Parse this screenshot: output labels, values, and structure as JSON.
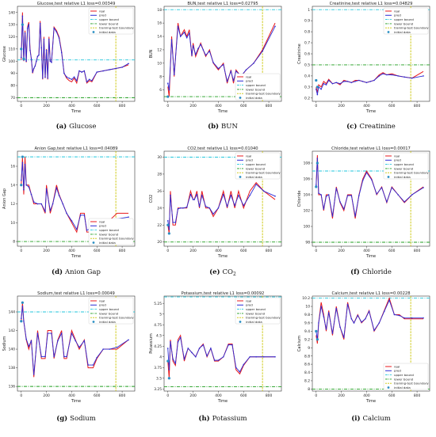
{
  "figure": {
    "legend_labels": [
      "real",
      "pred",
      "upper bound",
      "lower bound",
      "training-test boundary",
      "initial data"
    ],
    "xlabel": "Time",
    "colors": {
      "real": "#e8191c",
      "pred": "#2b2bd6",
      "upper": "#22c6dc",
      "lower": "#1f9e1f",
      "boundary": "#c9c400",
      "initial": "#2a8fc4"
    }
  },
  "chart_data": [
    {
      "type": "line",
      "id": "glucose",
      "title": "Glucose,test relative L1 loss=0.00349",
      "ylabel": "Glucose",
      "caption_letter": "(a)",
      "caption_name": "Glucose",
      "caption_sub": "",
      "xlim": [
        -30,
        900
      ],
      "ylim": [
        67,
        145
      ],
      "xticks": [
        0,
        200,
        400,
        600,
        800
      ],
      "yticks": [
        70,
        80,
        90,
        100,
        110,
        120,
        130,
        140
      ],
      "upper": 101,
      "lower": 70,
      "boundary": 750,
      "legend": "top-right",
      "x": [
        0,
        10,
        20,
        30,
        40,
        50,
        60,
        70,
        80,
        90,
        100,
        110,
        120,
        130,
        140,
        150,
        160,
        170,
        180,
        190,
        200,
        210,
        220,
        230,
        240,
        260,
        280,
        300,
        320,
        340,
        360,
        380,
        400,
        420,
        440,
        460,
        480,
        500,
        520,
        540,
        560,
        600,
        650,
        700,
        750,
        800,
        850
      ],
      "real": [
        101,
        140,
        100,
        125,
        99,
        128,
        132,
        110,
        102,
        90,
        94,
        96,
        100,
        104,
        105,
        133,
        112,
        85,
        120,
        86,
        110,
        85,
        120,
        100,
        99,
        128,
        125,
        120,
        108,
        90,
        86,
        84,
        83,
        86,
        82,
        92,
        91,
        92,
        82,
        84,
        83,
        91,
        92,
        93,
        94,
        95,
        97
      ],
      "pred": [
        103,
        137,
        101,
        123,
        100,
        127,
        130,
        109,
        102,
        91,
        94,
        96,
        100,
        104,
        105,
        131,
        111,
        86,
        118,
        87,
        109,
        86,
        118,
        100,
        99,
        127,
        124,
        119,
        107,
        90,
        87,
        86,
        85,
        87,
        84,
        92,
        91,
        92,
        83,
        85,
        84,
        91,
        92,
        93,
        94,
        95,
        98
      ],
      "init_x": [
        0,
        10,
        20
      ],
      "init_y": [
        110,
        130,
        102
      ]
    },
    {
      "type": "line",
      "id": "bun",
      "title": "BUN,test relative L1 loss=0.02795",
      "ylabel": "BUN",
      "caption_letter": "(b)",
      "caption_name": "BUN",
      "caption_sub": "",
      "xlim": [
        -30,
        900
      ],
      "ylim": [
        4.3,
        18.5
      ],
      "xticks": [
        0,
        200,
        400,
        600,
        800
      ],
      "yticks": [
        6,
        8,
        10,
        12,
        14,
        16,
        18
      ],
      "upper": 18,
      "lower": 5,
      "boundary": 750,
      "legend": "bottom-right",
      "x": [
        0,
        10,
        30,
        50,
        80,
        100,
        130,
        150,
        170,
        190,
        200,
        220,
        240,
        260,
        280,
        300,
        330,
        360,
        400,
        440,
        470,
        500,
        520,
        540,
        580,
        620,
        680,
        750,
        850
      ],
      "real": [
        6.5,
        5,
        14,
        8,
        16,
        14,
        15,
        14,
        15,
        11,
        13,
        11,
        12,
        13,
        12,
        11,
        12,
        10,
        9,
        10,
        7,
        9,
        7,
        9,
        8,
        9,
        10,
        12,
        16
      ],
      "pred": [
        7,
        6,
        13.5,
        8.3,
        15.5,
        14,
        14.6,
        13.8,
        14.5,
        11.2,
        12.6,
        11.3,
        12.2,
        12.8,
        12,
        11.2,
        11.8,
        10.1,
        9.2,
        9.8,
        7.3,
        8.8,
        7.4,
        8.8,
        8.1,
        9,
        10,
        11.8,
        15.5
      ],
      "init_x": [
        0
      ],
      "init_y": [
        5
      ]
    },
    {
      "type": "line",
      "id": "creatinine",
      "title": "Creatinine,test relative L1 loss=0.04829",
      "ylabel": "Creatinine",
      "caption_letter": "(c)",
      "caption_name": "Creatinine",
      "caption_sub": "",
      "xlim": [
        -30,
        900
      ],
      "ylim": [
        0.17,
        1.03
      ],
      "xticks": [
        0,
        200,
        400,
        600,
        800
      ],
      "yticks": [
        0.2,
        0.3,
        0.4,
        0.5,
        0.6,
        0.7,
        0.8,
        0.9,
        1.0
      ],
      "upper": 1.0,
      "lower": 0.5,
      "boundary": 750,
      "legend": "top-right",
      "x": [
        0,
        10,
        20,
        40,
        60,
        80,
        100,
        130,
        160,
        190,
        220,
        250,
        280,
        310,
        340,
        370,
        400,
        430,
        460,
        500,
        530,
        560,
        600,
        650,
        700,
        760,
        850
      ],
      "real": [
        0.3,
        0.25,
        0.32,
        0.3,
        0.35,
        0.33,
        0.37,
        0.33,
        0.34,
        0.32,
        0.36,
        0.35,
        0.34,
        0.36,
        0.36,
        0.35,
        0.34,
        0.35,
        0.36,
        0.41,
        0.43,
        0.41,
        0.42,
        0.4,
        0.39,
        0.38,
        0.44
      ],
      "pred": [
        0.28,
        0.23,
        0.3,
        0.28,
        0.33,
        0.32,
        0.36,
        0.33,
        0.34,
        0.33,
        0.35,
        0.35,
        0.34,
        0.35,
        0.36,
        0.35,
        0.34,
        0.35,
        0.36,
        0.4,
        0.42,
        0.41,
        0.41,
        0.4,
        0.39,
        0.38,
        0.4
      ],
      "init_x": [
        0,
        10
      ],
      "init_y": [
        0.36,
        0.3
      ]
    },
    {
      "type": "line",
      "id": "aniongap",
      "title": "Anion Gap,test relative L1 loss=0.04089",
      "ylabel": "Anion Gap",
      "caption_letter": "(d)",
      "caption_name": "Anion Gap",
      "caption_sub": "",
      "xlim": [
        -30,
        900
      ],
      "ylim": [
        7.5,
        17.6
      ],
      "xticks": [
        0,
        200,
        400,
        600,
        800
      ],
      "yticks": [
        8,
        10,
        12,
        14,
        16
      ],
      "upper": 17,
      "lower": 8,
      "boundary": 750,
      "legend": "bottom-right",
      "x": [
        0,
        10,
        20,
        30,
        40,
        60,
        80,
        100,
        130,
        160,
        190,
        200,
        230,
        250,
        280,
        300,
        330,
        360,
        400,
        440,
        470,
        500,
        520,
        540,
        580,
        620,
        680,
        760,
        850
      ],
      "real": [
        14,
        17,
        13,
        17,
        14,
        14,
        13,
        12,
        12,
        12,
        11,
        14,
        11,
        12,
        14,
        13,
        12,
        11,
        10,
        9,
        11,
        11,
        9,
        9,
        9,
        9,
        10,
        11,
        11
      ],
      "pred": [
        14.5,
        16.4,
        13.5,
        16.2,
        14,
        13.8,
        13,
        12.2,
        12,
        12,
        11.2,
        13.6,
        11.3,
        12,
        13.7,
        12.9,
        12,
        11,
        10.2,
        9.3,
        10.8,
        10.8,
        9.2,
        9.3,
        9.2,
        9.3,
        10,
        10.4,
        10.6
      ],
      "init_x": [
        0,
        10
      ],
      "init_y": [
        14,
        17
      ]
    },
    {
      "type": "line",
      "id": "co2",
      "title": "CO2,test relative L1 loss=0.01040",
      "ylabel": "CO2",
      "caption_letter": "(e)",
      "caption_name": "CO",
      "caption_sub": "2",
      "xlim": [
        -30,
        900
      ],
      "ylim": [
        19.5,
        30.7
      ],
      "xticks": [
        0,
        200,
        400,
        600,
        800
      ],
      "yticks": [
        20,
        22,
        24,
        26,
        28,
        30
      ],
      "upper": 30,
      "lower": 20,
      "boundary": 750,
      "legend": "top-right",
      "x": [
        0,
        10,
        20,
        40,
        60,
        80,
        100,
        120,
        150,
        180,
        200,
        210,
        230,
        250,
        270,
        300,
        330,
        360,
        400,
        440,
        470,
        500,
        530,
        560,
        600,
        650,
        700,
        760,
        850
      ],
      "real": [
        22,
        21,
        26,
        22,
        22,
        24,
        24,
        24,
        24,
        26,
        25,
        25,
        26,
        24,
        26,
        24,
        24,
        23,
        24,
        26,
        24,
        26,
        24,
        26,
        24,
        26,
        27,
        26,
        25
      ],
      "pred": [
        22.5,
        21.5,
        25.5,
        22.3,
        22.3,
        23.9,
        24,
        24,
        24.1,
        25.6,
        25,
        25,
        25.6,
        24.2,
        25.5,
        24.2,
        24,
        23.3,
        24,
        25.6,
        24.2,
        25.5,
        24.3,
        25.5,
        24.3,
        25.5,
        26.8,
        26,
        25.4
      ],
      "init_x": [
        0,
        10
      ],
      "init_y": [
        22,
        21
      ]
    },
    {
      "type": "line",
      "id": "chloride",
      "title": "Chloride,test relative L1 loss=0.00017",
      "ylabel": "Chloride",
      "caption_letter": "(f)",
      "caption_name": "Chloride",
      "caption_sub": "",
      "xlim": [
        -30,
        900
      ],
      "ylim": [
        97.5,
        109.5
      ],
      "xticks": [
        0,
        200,
        400,
        600,
        800
      ],
      "yticks": [
        98,
        100,
        102,
        104,
        106,
        108
      ],
      "upper": 107,
      "lower": 98,
      "boundary": 750,
      "legend": "top-right",
      "x": [
        0,
        10,
        20,
        40,
        60,
        80,
        100,
        130,
        160,
        190,
        220,
        250,
        280,
        310,
        340,
        370,
        400,
        440,
        480,
        520,
        560,
        600,
        650,
        700,
        760,
        850
      ],
      "real": [
        105,
        109,
        104,
        104,
        102,
        104,
        104,
        101,
        105,
        103,
        102,
        104,
        104,
        101,
        104,
        106,
        107,
        106,
        104,
        105,
        103,
        105,
        104,
        103,
        104,
        105
      ],
      "pred": [
        105.2,
        108.6,
        104.2,
        104,
        102.2,
        103.8,
        104,
        101.3,
        104.8,
        103.1,
        102.2,
        103.9,
        103.9,
        101.3,
        103.9,
        105.8,
        106.8,
        105.9,
        104.1,
        104.9,
        103.1,
        104.9,
        104,
        103.1,
        104,
        104.9
      ],
      "init_x": [
        0,
        10
      ],
      "init_y": [
        105,
        108
      ]
    },
    {
      "type": "line",
      "id": "sodium",
      "title": "Sodium,test relative L1 loss=0.00049",
      "ylabel": "Sodium",
      "caption_letter": "(g)",
      "caption_name": "Sodium",
      "caption_sub": "",
      "xlim": [
        -30,
        900
      ],
      "ylim": [
        135.5,
        145.7
      ],
      "xticks": [
        0,
        200,
        400,
        600,
        800
      ],
      "yticks": [
        136,
        138,
        140,
        142,
        144
      ],
      "upper": 144,
      "lower": 136,
      "boundary": 750,
      "legend": "top-right",
      "x": [
        0,
        10,
        20,
        40,
        60,
        80,
        100,
        130,
        160,
        190,
        210,
        240,
        260,
        290,
        320,
        340,
        360,
        400,
        430,
        460,
        500,
        530,
        570,
        600,
        650,
        700,
        760,
        850
      ],
      "real": [
        143,
        145,
        143,
        141,
        140,
        141,
        137,
        142,
        139,
        139,
        142,
        142,
        139,
        141,
        142,
        139,
        139,
        142,
        141,
        140,
        141,
        138,
        138,
        139,
        140,
        140,
        140,
        141
      ],
      "pred": [
        143.3,
        144.6,
        143,
        141.1,
        140.3,
        140.9,
        137.3,
        141.7,
        139.2,
        139.2,
        141.7,
        141.7,
        139.2,
        140.9,
        141.7,
        139.2,
        139.2,
        141.7,
        140.9,
        140.2,
        140.9,
        138.3,
        138.3,
        139.1,
        140,
        140,
        140.2,
        141
      ],
      "init_x": [
        0,
        10
      ],
      "init_y": [
        143,
        145
      ]
    },
    {
      "type": "line",
      "id": "potassium",
      "title": "Potassium,test relative L1 loss=0.00092",
      "ylabel": "Potassium",
      "caption_letter": "(h)",
      "caption_name": "Potassium",
      "caption_sub": "",
      "xlim": [
        -30,
        900
      ],
      "ylim": [
        3.2,
        5.42
      ],
      "xticks": [
        0,
        200,
        400,
        600,
        800
      ],
      "yticks": [
        3.25,
        3.5,
        3.75,
        4.0,
        4.25,
        4.5,
        4.75,
        5.0,
        5.25
      ],
      "upper": 5.4,
      "lower": 3.3,
      "boundary": 750,
      "legend": "top-right",
      "x": [
        0,
        10,
        20,
        40,
        60,
        80,
        100,
        130,
        160,
        190,
        220,
        250,
        280,
        310,
        340,
        370,
        400,
        440,
        480,
        510,
        540,
        570,
        600,
        650,
        700,
        760,
        850
      ],
      "real": [
        3.9,
        3.5,
        4.4,
        3.9,
        3.8,
        4.4,
        4.5,
        3.9,
        4.2,
        4.1,
        4.0,
        4.2,
        4.3,
        4.0,
        4.2,
        3.9,
        3.9,
        4.0,
        4.3,
        4.3,
        3.7,
        3.6,
        3.8,
        4.0,
        4.0,
        4.0,
        4.0
      ],
      "pred": [
        4.2,
        3.7,
        4.35,
        3.95,
        3.85,
        4.35,
        4.45,
        3.95,
        4.2,
        4.1,
        4.0,
        4.2,
        4.28,
        4.02,
        4.2,
        3.92,
        3.92,
        4.0,
        4.28,
        4.28,
        3.75,
        3.65,
        3.82,
        4.0,
        4.0,
        4.0,
        4.0
      ],
      "init_x": [
        0,
        10
      ],
      "init_y": [
        3.9,
        3.5
      ]
    },
    {
      "type": "line",
      "id": "calcium",
      "title": "Calcium,test relative L1 loss=0.00228",
      "ylabel": "Calcium",
      "caption_letter": "(i)",
      "caption_name": "Calcium",
      "caption_sub": "",
      "xlim": [
        -30,
        900
      ],
      "ylim": [
        7.95,
        10.25
      ],
      "xticks": [
        0,
        200,
        400,
        600,
        800
      ],
      "yticks": [
        8.0,
        8.2,
        8.4,
        8.6,
        8.8,
        9.0,
        9.2,
        9.4,
        9.6,
        9.8,
        10.0,
        10.2
      ],
      "upper": 10.2,
      "lower": 8.0,
      "boundary": 750,
      "legend": "bottom-right",
      "x": [
        0,
        10,
        20,
        40,
        60,
        80,
        100,
        130,
        160,
        190,
        220,
        250,
        280,
        300,
        330,
        360,
        390,
        420,
        460,
        500,
        540,
        580,
        620,
        660,
        700,
        760,
        850
      ],
      "real": [
        9.3,
        9.1,
        9.6,
        10.1,
        9.8,
        9.4,
        9.9,
        9.3,
        10.0,
        9.5,
        9.2,
        10.1,
        9.7,
        9.6,
        9.8,
        9.6,
        9.7,
        9.9,
        9.4,
        9.6,
        9.9,
        10.2,
        9.8,
        9.8,
        9.7,
        9.7,
        9.7
      ],
      "pred": [
        9.4,
        9.2,
        9.6,
        10.0,
        9.75,
        9.45,
        9.85,
        9.35,
        9.95,
        9.5,
        9.25,
        10.05,
        9.7,
        9.6,
        9.78,
        9.62,
        9.7,
        9.88,
        9.42,
        9.6,
        9.88,
        10.15,
        9.8,
        9.78,
        9.72,
        9.72,
        9.72
      ],
      "init_x": [
        0,
        10
      ],
      "init_y": [
        9.4,
        9.2
      ]
    }
  ]
}
